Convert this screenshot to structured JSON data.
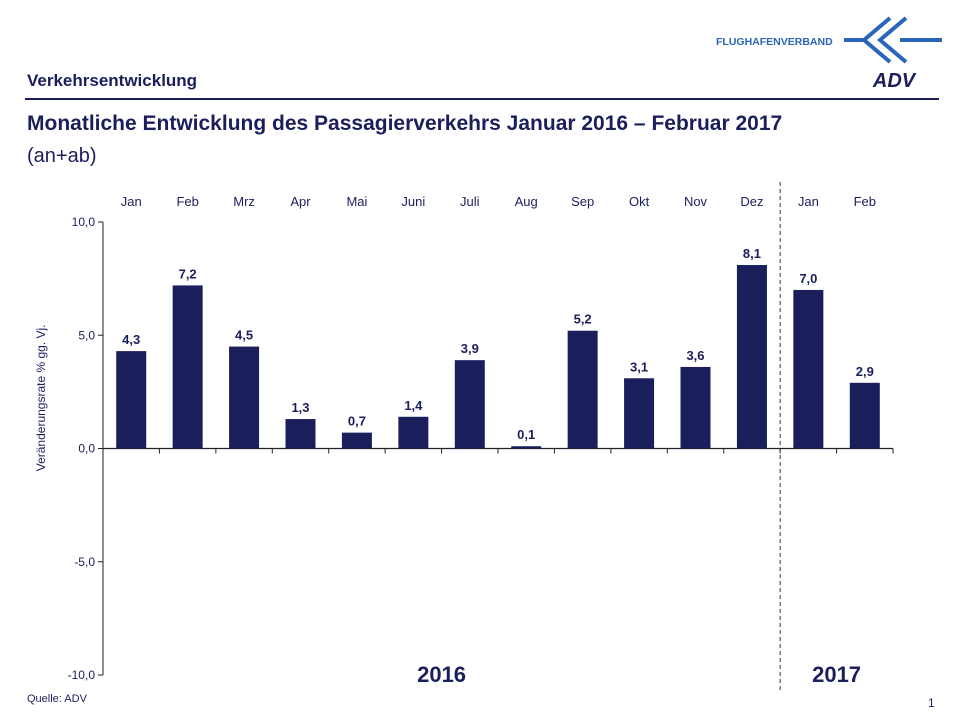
{
  "header": {
    "section": "Verkehrsentwicklung",
    "logo_org": "FLUGHAFENVERBAND",
    "logo_brand": "ADV"
  },
  "title": "Monatliche Entwicklung des Passagierverkehrs  Januar 2016 – Februar 2017",
  "subtitle": "(an+ab)",
  "footer": {
    "source": "Quelle: ADV",
    "page": "1"
  },
  "colors": {
    "bar": "#1a1f5c",
    "text": "#1a1f5c",
    "logo_blue": "#2a66b8"
  },
  "chart_data": {
    "type": "bar",
    "categories": [
      "Jan",
      "Feb",
      "Mrz",
      "Apr",
      "Mai",
      "Juni",
      "Juli",
      "Aug",
      "Sep",
      "Okt",
      "Nov",
      "Dez",
      "Jan",
      "Feb"
    ],
    "values": [
      4.3,
      7.2,
      4.5,
      1.3,
      0.7,
      1.4,
      3.9,
      0.1,
      5.2,
      3.1,
      3.6,
      8.1,
      7.0,
      2.9
    ],
    "value_labels": [
      "4,3",
      "7,2",
      "4,5",
      "1,3",
      "0,7",
      "1,4",
      "3,9",
      "0,1",
      "5,2",
      "3,1",
      "3,6",
      "8,1",
      "7,0",
      "2,9"
    ],
    "ylim": [
      -10,
      10
    ],
    "yticks": [
      10,
      5,
      0,
      -5,
      -10
    ],
    "ytick_labels": [
      "10,0",
      "5,0",
      "0,0",
      "-5,0",
      "-10,0"
    ],
    "ylabel": "Veränderungsrate  % gg. Vj.",
    "xlabel": "",
    "groups": [
      {
        "label": "2016",
        "start": 0,
        "end": 11
      },
      {
        "label": "2017",
        "start": 12,
        "end": 13
      }
    ],
    "year_divider_after_index": 11
  }
}
